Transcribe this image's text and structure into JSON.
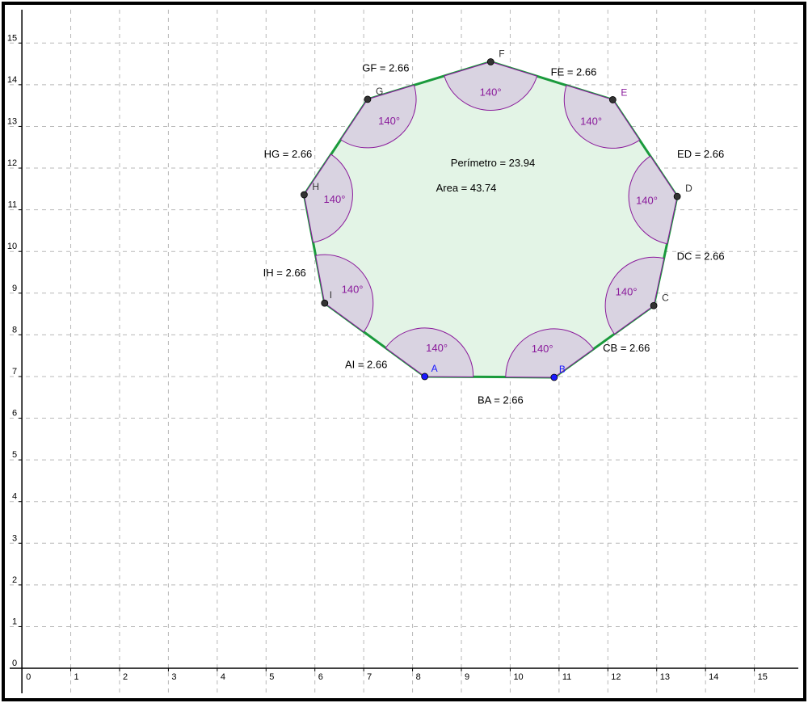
{
  "axes": {
    "x_ticks": [
      "0",
      "1",
      "2",
      "3",
      "4",
      "5",
      "6",
      "7",
      "8",
      "9",
      "10",
      "11",
      "12",
      "13",
      "14",
      "15"
    ],
    "y_ticks": [
      "0",
      "1",
      "2",
      "3",
      "4",
      "5",
      "6",
      "7",
      "8",
      "9",
      "10",
      "11",
      "12",
      "13",
      "14",
      "15"
    ],
    "x_range": [
      -0.25,
      15.9
    ],
    "y_range": [
      -0.6,
      15.8
    ],
    "grid": true
  },
  "colors": {
    "polygon_stroke": "#1a9a3c",
    "polygon_fill": "#e3f4e6",
    "angle_stroke": "#8a1a9b",
    "angle_fill": "#d9d3e1",
    "point_free": "#1a1aa6",
    "point_dependent": "#333333"
  },
  "polygon": {
    "vertices": [
      {
        "name": "A",
        "x": 8.25,
        "y": 7.0,
        "color": "#1a1aff",
        "label_color": "#1a1aff"
      },
      {
        "name": "B",
        "x": 10.9,
        "y": 6.98,
        "color": "#1a1aff",
        "label_color": "#1a1aff"
      },
      {
        "name": "C",
        "x": 12.94,
        "y": 8.7,
        "color": "#333333",
        "label_color": "#333333"
      },
      {
        "name": "D",
        "x": 13.42,
        "y": 11.32,
        "color": "#333333",
        "label_color": "#333333"
      },
      {
        "name": "E",
        "x": 12.1,
        "y": 13.64,
        "color": "#333333",
        "label_color": "#8a1a9b"
      },
      {
        "name": "F",
        "x": 9.6,
        "y": 14.55,
        "color": "#333333",
        "label_color": "#333333"
      },
      {
        "name": "G",
        "x": 7.08,
        "y": 13.65,
        "color": "#333333",
        "label_color": "#333333"
      },
      {
        "name": "H",
        "x": 5.78,
        "y": 11.36,
        "color": "#333333",
        "label_color": "#333333"
      },
      {
        "name": "I",
        "x": 6.2,
        "y": 8.76,
        "color": "#333333",
        "label_color": "#333333"
      }
    ],
    "interior_angle_label": "140°",
    "side_labels": [
      {
        "text": "BA = 2.66",
        "x": 9.8,
        "y": 6.35
      },
      {
        "text": "CB = 2.66",
        "x": 12.38,
        "y": 7.6
      },
      {
        "text": "DC = 2.66",
        "x": 13.9,
        "y": 9.8
      },
      {
        "text": "ED = 2.66",
        "x": 13.9,
        "y": 12.25
      },
      {
        "text": "FE = 2.66",
        "x": 11.3,
        "y": 14.22
      },
      {
        "text": "GF = 2.66",
        "x": 7.45,
        "y": 14.32
      },
      {
        "text": "HG = 2.66",
        "x": 5.45,
        "y": 12.25
      },
      {
        "text": "IH = 2.66",
        "x": 5.38,
        "y": 9.4
      },
      {
        "text": "AI = 2.66",
        "x": 7.05,
        "y": 7.2
      }
    ]
  },
  "measurements": {
    "perimeter": "Perímetro = 23.94",
    "area": "Area = 43.74"
  }
}
